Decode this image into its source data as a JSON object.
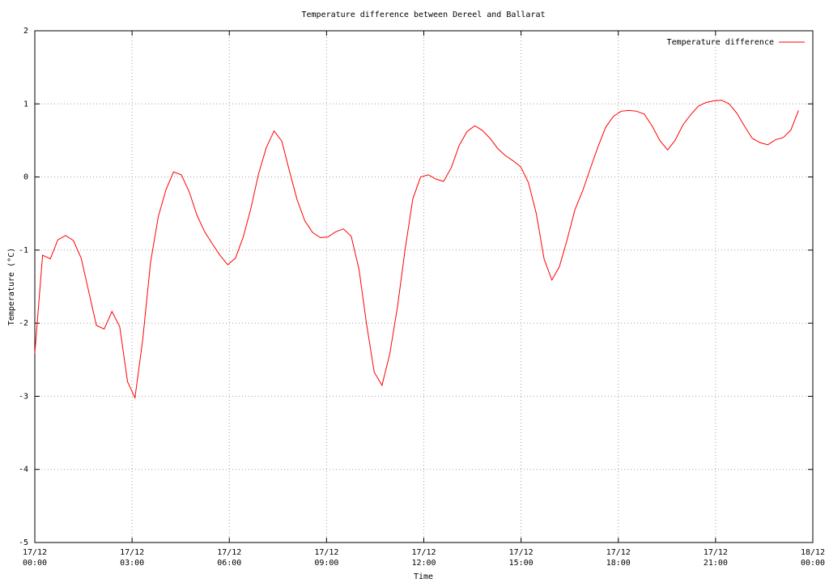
{
  "chart_data": {
    "type": "line",
    "title": "Temperature difference between Dereel and Ballarat",
    "x_label": "Time",
    "y_label": "Temperature (°C)",
    "grid": true,
    "legend": "top-right",
    "xlim": [
      0,
      24
    ],
    "xticks": [
      {
        "value": 0,
        "label": "17/12\n00:00"
      },
      {
        "value": 3,
        "label": "17/12\n03:00"
      },
      {
        "value": 6,
        "label": "17/12\n06:00"
      },
      {
        "value": 9,
        "label": "17/12\n09:00"
      },
      {
        "value": 12,
        "label": "17/12\n12:00"
      },
      {
        "value": 15,
        "label": "17/12\n15:00"
      },
      {
        "value": 18,
        "label": "17/12\n18:00"
      },
      {
        "value": 21,
        "label": "17/12\n21:00"
      },
      {
        "value": 24,
        "label": "18/12\n00:00"
      }
    ],
    "ylim": [
      -5,
      2
    ],
    "yticks": [
      -5,
      -4,
      -3,
      -2,
      -1,
      0,
      1,
      2
    ],
    "x": [
      0,
      0.24,
      0.48,
      0.71,
      0.95,
      1.19,
      1.43,
      1.67,
      1.9,
      2.14,
      2.38,
      2.62,
      2.86,
      3.09,
      3.33,
      3.57,
      3.81,
      4.05,
      4.28,
      4.52,
      4.76,
      5.0,
      5.24,
      5.47,
      5.71,
      5.95,
      6.19,
      6.43,
      6.66,
      6.9,
      7.14,
      7.38,
      7.62,
      7.85,
      8.09,
      8.33,
      8.57,
      8.81,
      9.04,
      9.28,
      9.52,
      9.76,
      10.0,
      10.23,
      10.47,
      10.71,
      10.95,
      11.19,
      11.42,
      11.66,
      11.9,
      12.14,
      12.38,
      12.61,
      12.85,
      13.09,
      13.33,
      13.57,
      13.8,
      14.04,
      14.28,
      14.52,
      14.76,
      14.99,
      15.23,
      15.47,
      15.71,
      15.95,
      16.18,
      16.42,
      16.66,
      16.9,
      17.14,
      17.37,
      17.61,
      17.85,
      18.09,
      18.33,
      18.56,
      18.8,
      19.04,
      19.28,
      19.52,
      19.75,
      19.99,
      20.23,
      20.47,
      20.71,
      20.94,
      21.18,
      21.42,
      21.66,
      21.9,
      22.13,
      22.37,
      22.61,
      22.85,
      23.09,
      23.32,
      23.56
    ],
    "series": [
      {
        "name": "Temperature difference",
        "color": "#ff0000",
        "values": [
          -2.41,
          -1.07,
          -1.12,
          -0.86,
          -0.8,
          -0.87,
          -1.11,
          -1.58,
          -2.03,
          -2.08,
          -1.84,
          -2.05,
          -2.8,
          -3.02,
          -2.22,
          -1.17,
          -0.54,
          -0.17,
          0.07,
          0.03,
          -0.2,
          -0.52,
          -0.75,
          -0.91,
          -1.07,
          -1.2,
          -1.11,
          -0.82,
          -0.44,
          0.04,
          0.4,
          0.63,
          0.49,
          0.09,
          -0.31,
          -0.6,
          -0.76,
          -0.83,
          -0.82,
          -0.75,
          -0.71,
          -0.81,
          -1.26,
          -2.0,
          -2.67,
          -2.85,
          -2.42,
          -1.77,
          -1.0,
          -0.3,
          0.0,
          0.03,
          -0.03,
          -0.06,
          0.13,
          0.43,
          0.62,
          0.7,
          0.64,
          0.53,
          0.39,
          0.29,
          0.22,
          0.14,
          -0.08,
          -0.5,
          -1.12,
          -1.41,
          -1.23,
          -0.86,
          -0.45,
          -0.19,
          0.12,
          0.41,
          0.68,
          0.83,
          0.9,
          0.91,
          0.9,
          0.86,
          0.7,
          0.5,
          0.37,
          0.5,
          0.71,
          0.85,
          0.97,
          1.02,
          1.04,
          1.05,
          1.0,
          0.87,
          0.69,
          0.53,
          0.47,
          0.44,
          0.51,
          0.54,
          0.64,
          0.91
        ]
      }
    ]
  }
}
